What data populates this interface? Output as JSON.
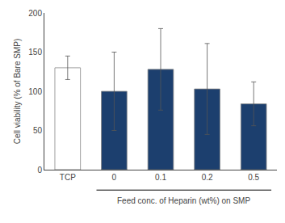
{
  "chart_data": {
    "type": "bar",
    "categories": [
      "TCP",
      "0",
      "0.1",
      "0.2",
      "0.5"
    ],
    "values": [
      130,
      100,
      128,
      103,
      84
    ],
    "errors": [
      15,
      50,
      52,
      58,
      28
    ],
    "colors": [
      "white",
      "#1c3f6e",
      "#1c3f6e",
      "#1c3f6e",
      "#1c3f6e"
    ],
    "ylabel": "Cell viability (% of Bare SMP)",
    "xlabel": "Feed conc. of Heparin (wt%) on SMP",
    "ylim": [
      0,
      200
    ],
    "yticks": [
      0,
      50,
      100,
      150,
      200
    ],
    "grid": false
  }
}
